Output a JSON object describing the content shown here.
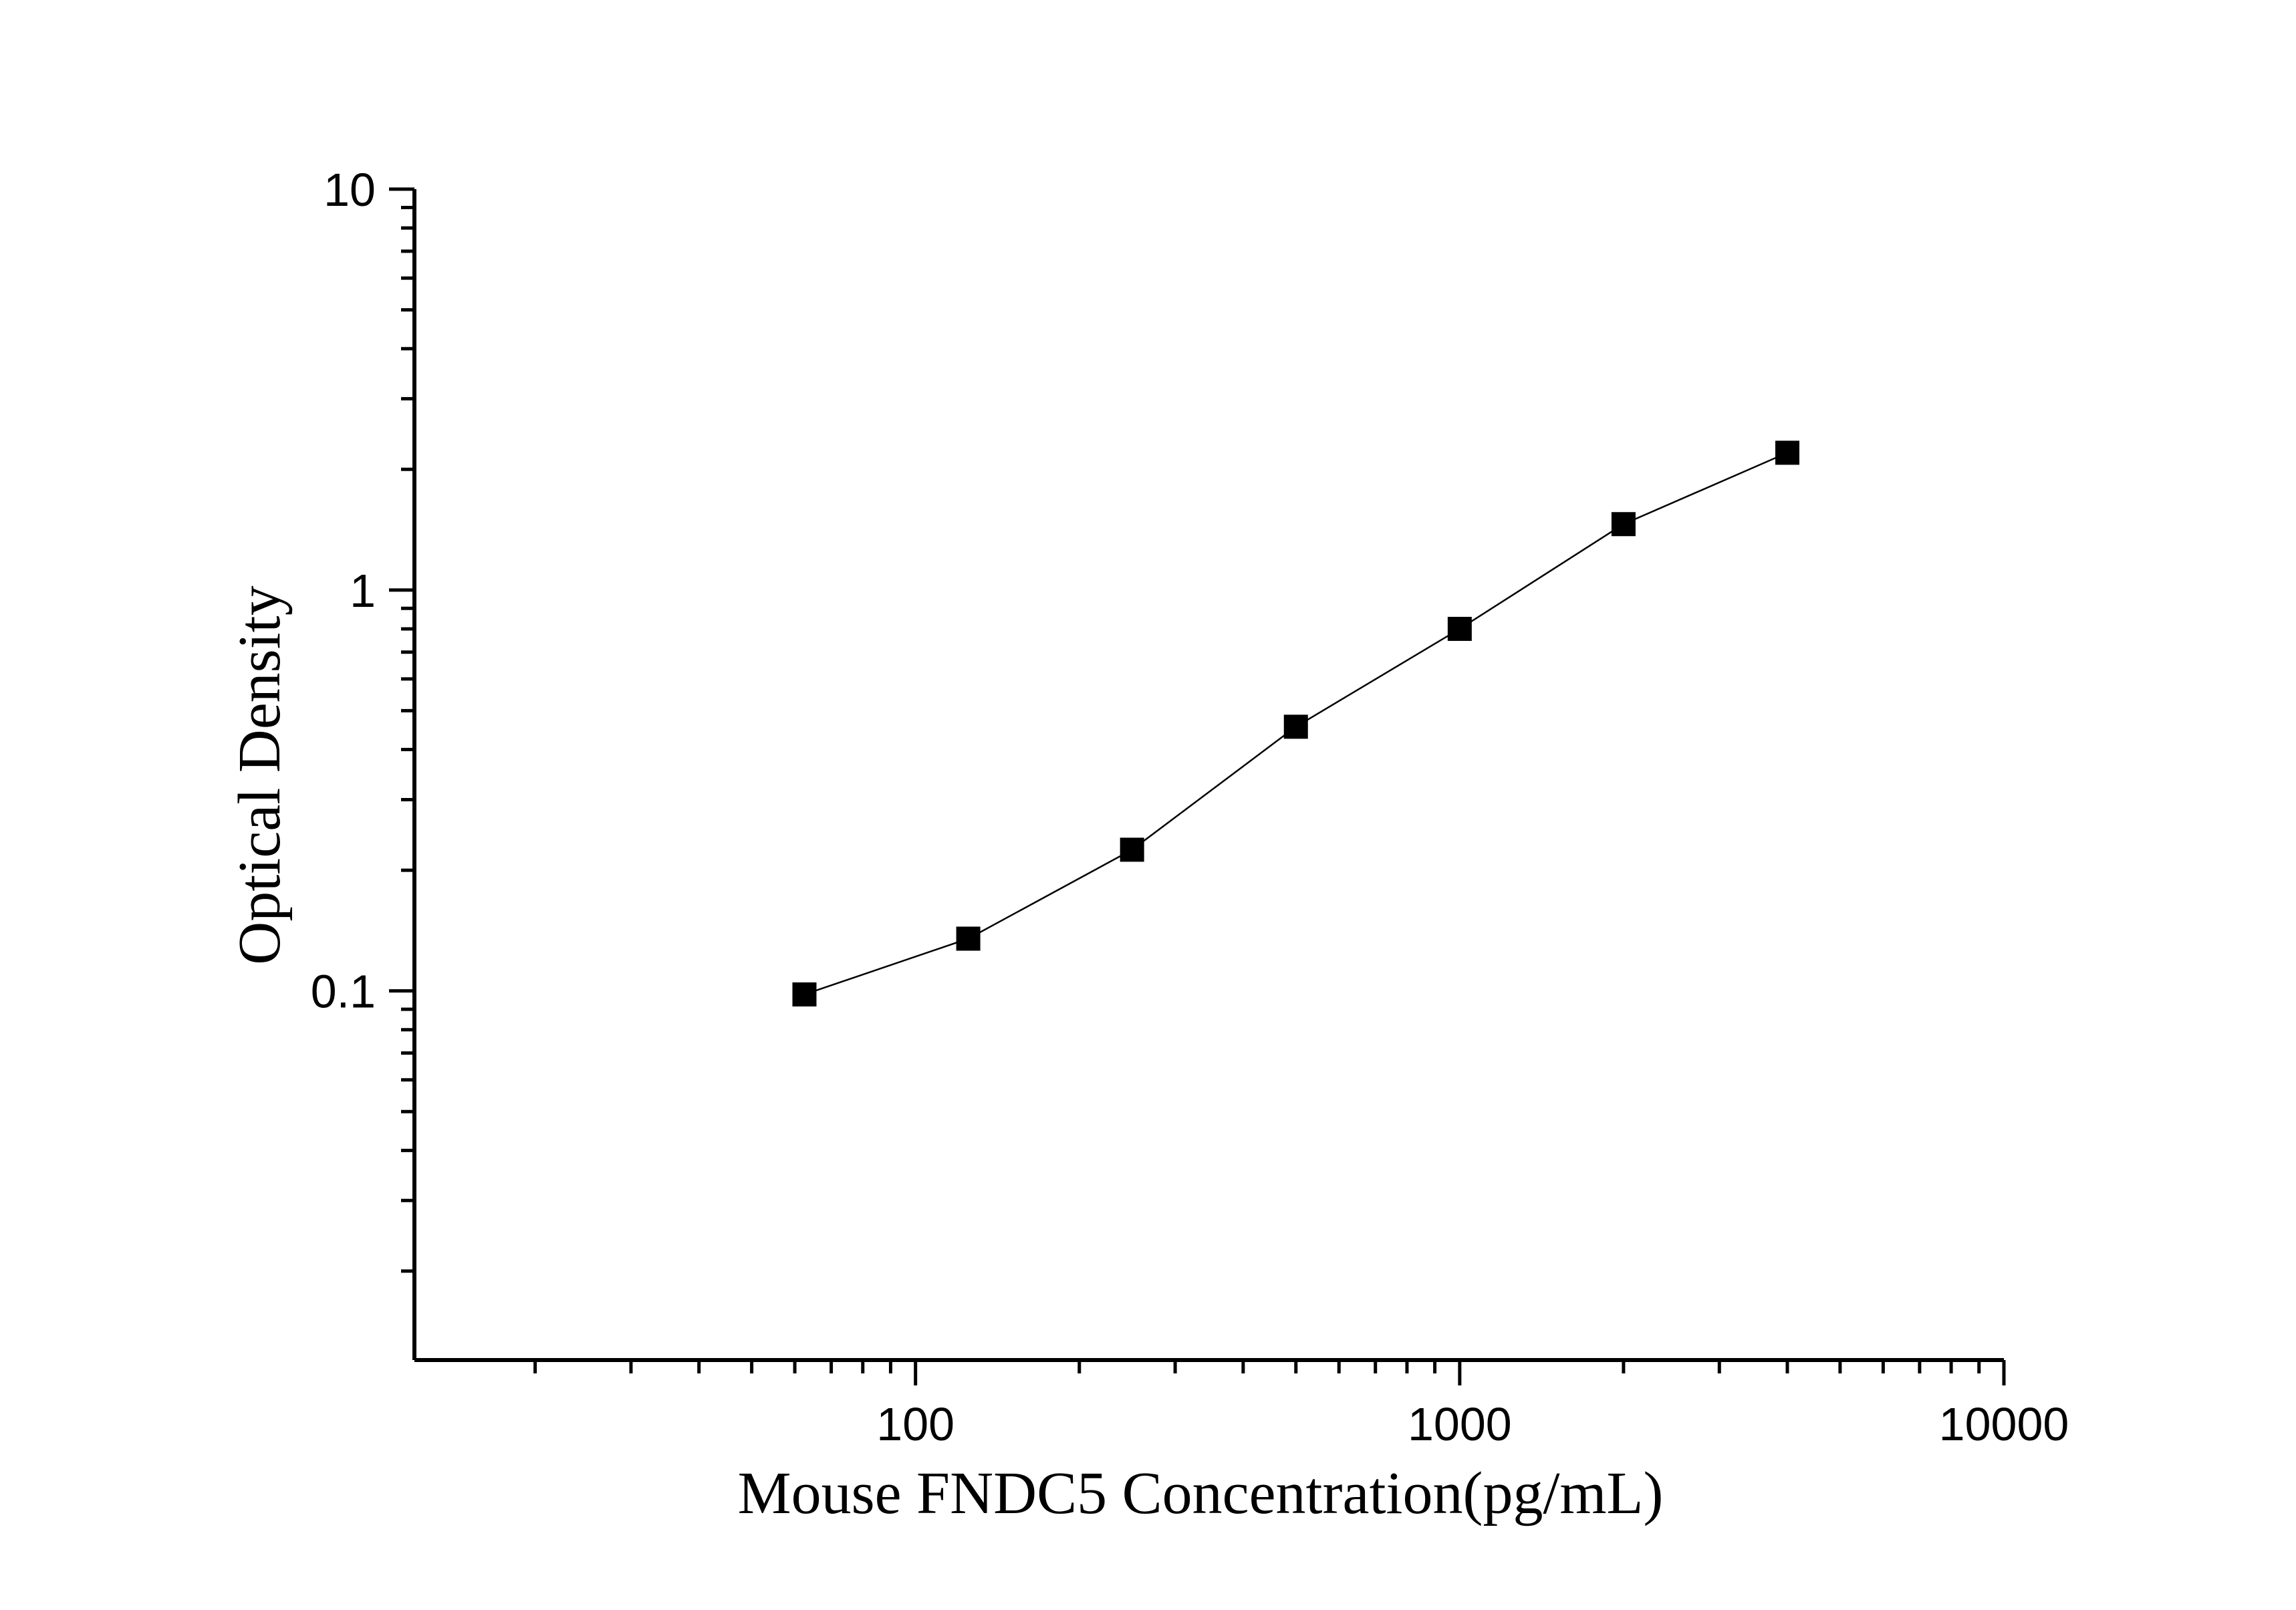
{
  "chart_data": {
    "type": "scatter",
    "title": "",
    "xlabel": "Mouse FNDC5 Concentration(pg/mL)",
    "ylabel": "Optical Density",
    "xscale": "log",
    "yscale": "log",
    "xlim": [
      12,
      10000
    ],
    "ylim": [
      0.012,
      10
    ],
    "x_ticks": [
      {
        "value": 100,
        "label": "100"
      },
      {
        "value": 1000,
        "label": "1000"
      },
      {
        "value": 10000,
        "label": "10000"
      }
    ],
    "y_ticks": [
      {
        "value": 0.1,
        "label": "0.1"
      },
      {
        "value": 1,
        "label": "1"
      },
      {
        "value": 10,
        "label": "10"
      }
    ],
    "grid": false,
    "legend": "none",
    "series": [
      {
        "marker": "square",
        "line": true,
        "color": "#000000",
        "x": [
          62.5,
          125,
          250,
          500,
          1000,
          2000,
          4000
        ],
        "y": [
          0.098,
          0.135,
          0.225,
          0.456,
          0.8,
          1.46,
          2.2
        ]
      }
    ]
  }
}
